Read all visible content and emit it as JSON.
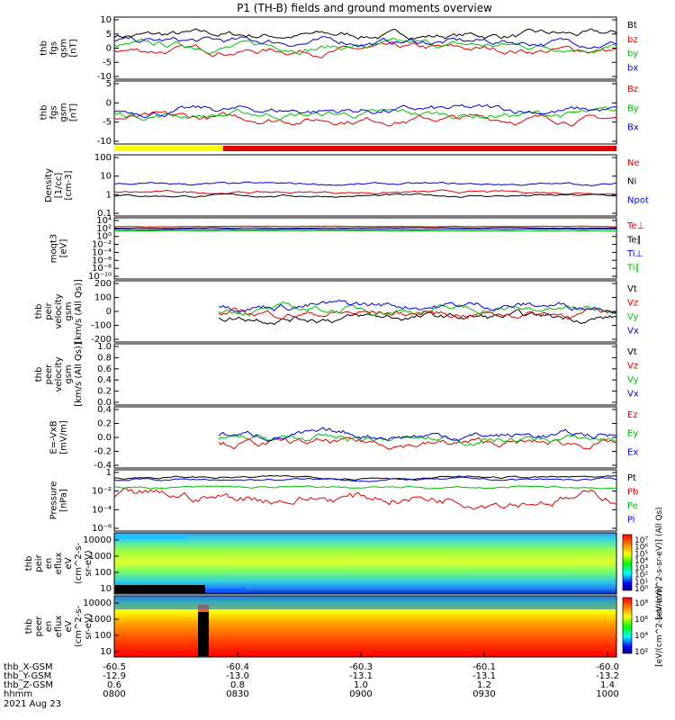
{
  "title": "P1 (TH-B) fields and ground moments overview",
  "footer": {
    "date": "2021 Aug 23",
    "rows": [
      {
        "label": "thb_X-GSM",
        "values": [
          "-60.5",
          "-60.4",
          "-60.3",
          "-60.1",
          "-60.0"
        ]
      },
      {
        "label": "thb_Y-GSM",
        "values": [
          "-12.9",
          "-13.0",
          "-13.1",
          "-13.1",
          "-13.2"
        ]
      },
      {
        "label": "thb_Z-GSM",
        "values": [
          "0.6",
          "0.8",
          "1.0",
          "1.2",
          "1.4"
        ]
      },
      {
        "label": "hhmm",
        "values": [
          "0800",
          "0830",
          "0900",
          "0930",
          "1000"
        ]
      }
    ]
  },
  "colors": {
    "black": "#000000",
    "red": "#e00000",
    "green": "#00c000",
    "blue": "#0000e0",
    "yellow": "#ffff00",
    "cyan": "#00ffff"
  },
  "chart_data": [
    {
      "type": "line",
      "panel": "fgs_gsm",
      "ylabel": [
        "thb",
        "fgs",
        "gsm",
        "[nT]"
      ],
      "ylim": [
        -10,
        10
      ],
      "yticks": [
        "10",
        "5",
        "0",
        "-5",
        "-10"
      ],
      "series": [
        {
          "name": "Bt",
          "color": "black"
        },
        {
          "name": "bz",
          "color": "red"
        },
        {
          "name": "by",
          "color": "green"
        },
        {
          "name": "bx",
          "color": "blue"
        }
      ]
    },
    {
      "type": "line",
      "panel": "fgs_gsm_b",
      "ylabel": [
        "thb",
        "fgs",
        "gsm",
        "[nT]"
      ],
      "ylim": [
        -12,
        6
      ],
      "yticks": [
        "5",
        "0",
        "-5",
        "-10"
      ],
      "series": [
        {
          "name": "Bz",
          "color": "red"
        },
        {
          "name": "By",
          "color": "green"
        },
        {
          "name": "Bx",
          "color": "blue"
        }
      ]
    },
    {
      "type": "bar",
      "panel": "flag",
      "series": [
        {
          "name": "mode",
          "segments": [
            {
              "from": "0800",
              "to": "0826",
              "color": "yellow"
            },
            {
              "from": "0826",
              "to": "1000",
              "color": "red"
            }
          ]
        }
      ]
    },
    {
      "type": "line",
      "panel": "density",
      "ylabel": [
        "Density",
        "[1/cc]",
        "[cm-3]"
      ],
      "scale": "log",
      "yticks": [
        "100",
        "10",
        "1",
        "0.1"
      ],
      "series": [
        {
          "name": "Ne",
          "color": "red"
        },
        {
          "name": "Ni",
          "color": "black"
        },
        {
          "name": "Npot",
          "color": "blue"
        }
      ]
    },
    {
      "type": "line",
      "panel": "temperature",
      "ylabel": [
        "moqt3",
        "[eV]"
      ],
      "scale": "log",
      "yticks": [
        "10⁴",
        "10²",
        "10⁰",
        "10⁻²",
        "10⁻⁴",
        "10⁻⁶",
        "10⁻⁸",
        "10⁻¹⁰"
      ],
      "series": [
        {
          "name": "Te⊥",
          "color": "red"
        },
        {
          "name": "Te∥",
          "color": "black"
        },
        {
          "name": "Ti⊥",
          "color": "blue"
        },
        {
          "name": "Ti∥",
          "color": "green"
        }
      ]
    },
    {
      "type": "line",
      "panel": "peir_velocity",
      "ylabel": [
        "thb",
        "peir",
        "velocity",
        "gsm",
        "[km/s (All Qs)]"
      ],
      "ylim": [
        -200,
        200
      ],
      "yticks": [
        "200",
        "100",
        "0",
        "-100",
        "-200"
      ],
      "series": [
        {
          "name": "Vt",
          "color": "black"
        },
        {
          "name": "Vz",
          "color": "red"
        },
        {
          "name": "Vy",
          "color": "green"
        },
        {
          "name": "Vx",
          "color": "blue"
        }
      ]
    },
    {
      "type": "line",
      "panel": "peer_velocity",
      "ylabel": [
        "thb",
        "peer",
        "velocity",
        "gsm",
        "[km/s (All Qs)]"
      ],
      "ylim": [
        0,
        1
      ],
      "yticks": [
        "1.0",
        "0.8",
        "0.6",
        "0.4",
        "0.2",
        "0.0"
      ],
      "series": [
        {
          "name": "Vt",
          "color": "black"
        },
        {
          "name": "Vz",
          "color": "red"
        },
        {
          "name": "Vy",
          "color": "green"
        },
        {
          "name": "Vx",
          "color": "blue"
        }
      ]
    },
    {
      "type": "line",
      "panel": "efield",
      "ylabel": [
        "E=-VxB",
        "[mV/m]"
      ],
      "ylim": [
        -0.4,
        0.4
      ],
      "yticks": [
        "0.4",
        "0.2",
        "0.0",
        "-0.2",
        "-0.4"
      ],
      "series": [
        {
          "name": "Ez",
          "color": "red"
        },
        {
          "name": "Ey",
          "color": "green"
        },
        {
          "name": "Ex",
          "color": "blue"
        }
      ]
    },
    {
      "type": "line",
      "panel": "pressure",
      "ylabel": [
        "Pressure",
        "[nPa]"
      ],
      "scale": "log",
      "yticks": [
        "1",
        "10⁻²",
        "10⁻⁴",
        "10⁻⁶"
      ],
      "series": [
        {
          "name": "Pt",
          "color": "black"
        },
        {
          "name": "Pb",
          "color": "red"
        },
        {
          "name": "Pe",
          "color": "green"
        },
        {
          "name": "Pi",
          "color": "blue"
        }
      ]
    },
    {
      "type": "heatmap",
      "panel": "peir_en_eflux",
      "ylabel": [
        "thb",
        "peir",
        "en",
        "eflux",
        "eV",
        "(cm^2-s-",
        "sr-eV)"
      ],
      "yticks": [
        "10000",
        "1000",
        "100",
        "10"
      ],
      "colorbar_ticks": [
        "10⁷",
        "10⁶",
        "10⁵",
        "10⁴",
        "10³",
        "10²",
        "10¹",
        "10⁰"
      ],
      "colorbar_label": "[eV/(cm^2-s-sr-eV)] (All Qs)"
    },
    {
      "type": "heatmap",
      "panel": "peer_en_eflux",
      "ylabel": [
        "thb",
        "peer",
        "en",
        "eflux",
        "eV",
        "(cm^2-s-",
        "sr-eV)"
      ],
      "yticks": [
        "10000",
        "1000",
        "100",
        "10"
      ],
      "colorbar_ticks": [
        "10⁸",
        "10⁶",
        "10⁴",
        "10²"
      ],
      "colorbar_label": "[eV/(cm^2-s-sr-eV)]"
    }
  ]
}
